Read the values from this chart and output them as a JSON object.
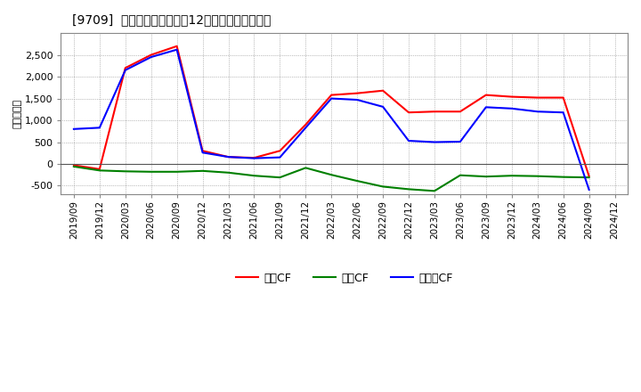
{
  "title": "[9709]  キャッシュフローの12か月移動合計の推移",
  "ylabel": "（百万円）",
  "ylim": [
    -700,
    3000
  ],
  "yticks": [
    -500,
    0,
    500,
    1000,
    1500,
    2000,
    2500
  ],
  "background_color": "#ffffff",
  "grid_color": "#aaaaaa",
  "x_labels": [
    "2019/09",
    "2019/12",
    "2020/03",
    "2020/06",
    "2020/09",
    "2020/12",
    "2021/03",
    "2021/06",
    "2021/09",
    "2021/12",
    "2022/03",
    "2022/06",
    "2022/09",
    "2022/12",
    "2023/03",
    "2023/06",
    "2023/09",
    "2023/12",
    "2024/03",
    "2024/06",
    "2024/09",
    "2024/12"
  ],
  "operating_cf": [
    -30,
    -120,
    2200,
    2500,
    2700,
    300,
    160,
    140,
    300,
    900,
    1580,
    1620,
    1680,
    1180,
    1200,
    1200,
    1580,
    1540,
    1520,
    1520,
    -280,
    null
  ],
  "investing_cf": [
    -60,
    -150,
    -170,
    -180,
    -180,
    -160,
    -200,
    -270,
    -310,
    -90,
    -250,
    -390,
    -520,
    -580,
    -620,
    -260,
    -290,
    -270,
    -280,
    -300,
    -310,
    null
  ],
  "free_cf": [
    800,
    830,
    2150,
    2450,
    2620,
    260,
    160,
    130,
    150,
    830,
    1500,
    1470,
    1310,
    530,
    500,
    510,
    1300,
    1270,
    1200,
    1180,
    -590,
    null
  ],
  "operating_color": "#ff0000",
  "investing_color": "#008000",
  "free_color": "#0000ff",
  "legend_labels": [
    "営業CF",
    "投資CF",
    "フリーCF"
  ]
}
